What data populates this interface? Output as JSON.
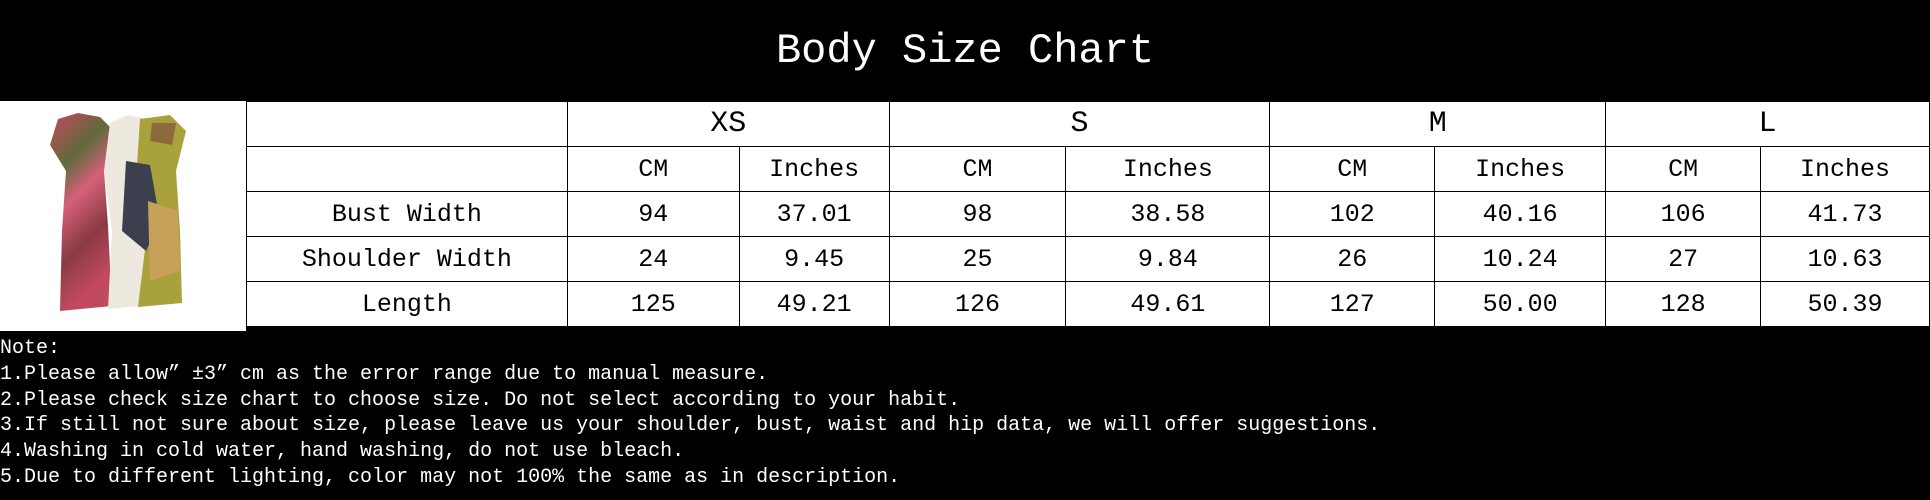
{
  "title": "Body Size Chart",
  "image": {
    "icon": "dress-product-photo"
  },
  "table": {
    "sizes": [
      "XS",
      "S",
      "M",
      "L"
    ],
    "units": [
      "CM",
      "Inches"
    ],
    "rows": [
      {
        "label": "Bust Width",
        "values": [
          "94",
          "37.01",
          "98",
          "38.58",
          "102",
          "40.16",
          "106",
          "41.73"
        ]
      },
      {
        "label": "Shoulder Width",
        "values": [
          "24",
          "9.45",
          "25",
          "9.84",
          "26",
          "10.24",
          "27",
          "10.63"
        ]
      },
      {
        "label": "Length",
        "values": [
          "125",
          "49.21",
          "126",
          "49.61",
          "127",
          "50.00",
          "128",
          "50.39"
        ]
      }
    ]
  },
  "notes": {
    "heading": "Note:",
    "items": [
      "1.Please allow” ±3” cm as the error range due to manual measure.",
      "2.Please check size chart to choose size. Do not select according to your habit.",
      "3.If still not sure about size, please leave us your shoulder, bust, waist and hip data, we will offer suggestions.",
      "4.Washing in cold water, hand washing, do not use bleach.",
      "5.Due to different lighting, color may not 100% the same as in description."
    ]
  }
}
